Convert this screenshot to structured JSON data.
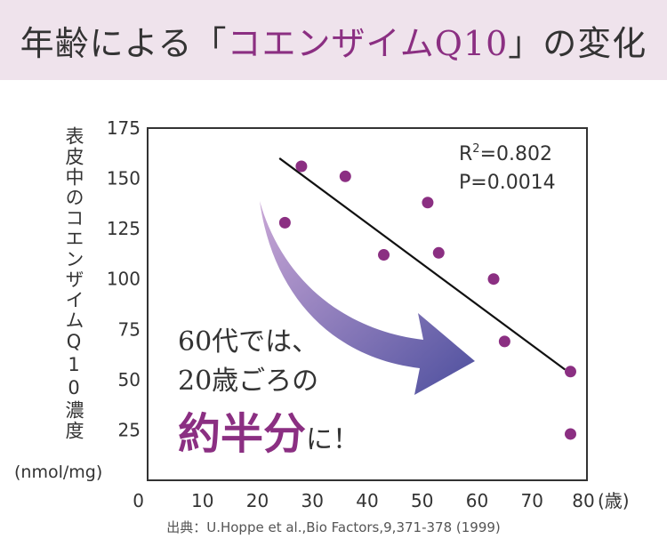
{
  "title": {
    "prefix": "年齢による「",
    "highlight": "コエンザイムQ10",
    "suffix": "」の変化"
  },
  "source": "出典：U.Hoppe et al.,Bio Factors,9,371-378 (1999)",
  "colors": {
    "title_band": "#efe3ec",
    "accent": "#8b2f82",
    "point": "#8b2f82",
    "arrow_start": "#c9a7d6",
    "arrow_end": "#4d4f9e"
  },
  "annotation": {
    "line1": "60代では、",
    "line2": "20歳ごろの",
    "line3_big": "約半分",
    "line3_tail": "に！"
  },
  "chart_data": {
    "type": "scatter",
    "title": "",
    "ylabel": "表皮中のコエンザイムQ10濃度",
    "yunit": "(nmol/mg)",
    "xunit": "(歳)",
    "xlim": [
      0,
      80
    ],
    "ylim": [
      0,
      175
    ],
    "x_ticks": [
      0,
      10,
      20,
      30,
      40,
      50,
      60,
      70,
      80
    ],
    "y_ticks": [
      25,
      50,
      75,
      100,
      125,
      150,
      175
    ],
    "points": [
      {
        "x": 25,
        "y": 128
      },
      {
        "x": 28,
        "y": 156
      },
      {
        "x": 36,
        "y": 151
      },
      {
        "x": 43,
        "y": 112
      },
      {
        "x": 51,
        "y": 138
      },
      {
        "x": 53,
        "y": 113
      },
      {
        "x": 63,
        "y": 100
      },
      {
        "x": 65,
        "y": 69
      },
      {
        "x": 77,
        "y": 54
      },
      {
        "x": 77,
        "y": 23
      }
    ],
    "trend": {
      "x1": 24,
      "y1": 160,
      "x2": 76,
      "y2": 55
    },
    "stats": {
      "r_prefix": "R",
      "r_sup": "2",
      "r_value": "=0.802",
      "p_label": "P=0.0014"
    },
    "grid": false
  }
}
